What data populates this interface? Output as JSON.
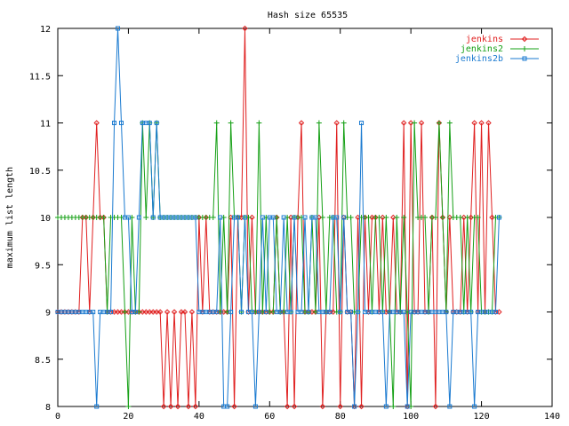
{
  "chart_data": {
    "type": "line",
    "title": "Hash size 65535",
    "xlabel": "",
    "ylabel": "maximum list length",
    "xlim": [
      0,
      140
    ],
    "ylim": [
      8,
      12
    ],
    "x_ticks": [
      0,
      20,
      40,
      60,
      80,
      100,
      120,
      140
    ],
    "y_ticks": [
      8,
      8.5,
      9,
      9.5,
      10,
      10.5,
      11,
      11.5,
      12
    ],
    "grid": false,
    "legend_position": "top-right",
    "x": [
      0,
      1,
      2,
      3,
      4,
      5,
      6,
      7,
      8,
      9,
      10,
      11,
      12,
      13,
      14,
      15,
      16,
      17,
      18,
      19,
      20,
      21,
      22,
      23,
      24,
      25,
      26,
      27,
      28,
      29,
      30,
      31,
      32,
      33,
      34,
      35,
      36,
      37,
      38,
      39,
      40,
      41,
      42,
      43,
      44,
      45,
      46,
      47,
      48,
      49,
      50,
      51,
      52,
      53,
      54,
      55,
      56,
      57,
      58,
      59,
      60,
      61,
      62,
      63,
      64,
      65,
      66,
      67,
      68,
      69,
      70,
      71,
      72,
      73,
      74,
      75,
      76,
      77,
      78,
      79,
      80,
      81,
      82,
      83,
      84,
      85,
      86,
      87,
      88,
      89,
      90,
      91,
      92,
      93,
      94,
      95,
      96,
      97,
      98,
      99,
      100,
      101,
      102,
      103,
      104,
      105,
      106,
      107,
      108,
      109,
      110,
      111,
      112,
      113,
      114,
      115,
      116,
      117,
      118,
      119,
      120,
      121,
      122,
      123,
      124,
      125
    ],
    "series": [
      {
        "name": "jenkins",
        "color": "#e02020",
        "marker": "diamond",
        "values": [
          9,
          9,
          9,
          9,
          9,
          9,
          9,
          10,
          10,
          9,
          10,
          11,
          10,
          10,
          9,
          9,
          9,
          9,
          9,
          9,
          9,
          9,
          9,
          9,
          9,
          9,
          9,
          9,
          9,
          9,
          8,
          9,
          8,
          9,
          8,
          9,
          9,
          8,
          9,
          8,
          10,
          9,
          10,
          9,
          9,
          9,
          9,
          9,
          9,
          10,
          8,
          10,
          10,
          12,
          9,
          10,
          9,
          9,
          9,
          9,
          9,
          9,
          10,
          9,
          9,
          8,
          10,
          8,
          10,
          11,
          9,
          9,
          9,
          9,
          10,
          8,
          9,
          9,
          9,
          11,
          8,
          10,
          9,
          9,
          8,
          10,
          8,
          10,
          9,
          10,
          10,
          9,
          10,
          9,
          9,
          10,
          9,
          9,
          11,
          8,
          11,
          9,
          9,
          11,
          9,
          9,
          10,
          8,
          11,
          10,
          9,
          10,
          9,
          9,
          9,
          10,
          9,
          10,
          11,
          9,
          11,
          9,
          11,
          10,
          9,
          9
        ]
      },
      {
        "name": "jenkins2",
        "color": "#16a016",
        "marker": "plus",
        "values": [
          10,
          10,
          10,
          10,
          10,
          10,
          10,
          10,
          10,
          10,
          10,
          10,
          10,
          10,
          9,
          10,
          10,
          10,
          10,
          9,
          8,
          10,
          9,
          9,
          11,
          10,
          11,
          10,
          11,
          10,
          10,
          10,
          10,
          10,
          10,
          10,
          10,
          10,
          10,
          10,
          10,
          10,
          10,
          10,
          10,
          11,
          9,
          10,
          9,
          11,
          10,
          10,
          9,
          10,
          10,
          9,
          9,
          11,
          9,
          10,
          9,
          9,
          10,
          9,
          9,
          10,
          9,
          10,
          10,
          10,
          9,
          9,
          10,
          9,
          11,
          10,
          9,
          10,
          10,
          9,
          9,
          11,
          10,
          10,
          9,
          9,
          10,
          10,
          10,
          9,
          10,
          10,
          9,
          10,
          9,
          8,
          10,
          9,
          10,
          9,
          8,
          11,
          10,
          10,
          10,
          9,
          10,
          10,
          11,
          10,
          9,
          11,
          10,
          10,
          10,
          9,
          10,
          9,
          10,
          10,
          9,
          9,
          9,
          9,
          10,
          10
        ]
      },
      {
        "name": "jenkins2b",
        "color": "#1a7ad0",
        "marker": "square",
        "values": [
          9,
          9,
          9,
          9,
          9,
          9,
          9,
          9,
          9,
          9,
          9,
          8,
          9,
          9,
          9,
          9,
          11,
          12,
          11,
          10,
          10,
          9,
          9,
          10,
          11,
          11,
          11,
          10,
          11,
          10,
          10,
          10,
          10,
          10,
          10,
          10,
          10,
          10,
          10,
          10,
          9,
          9,
          9,
          9,
          9,
          9,
          10,
          8,
          8,
          9,
          10,
          10,
          9,
          10,
          9,
          9,
          8,
          9,
          10,
          9,
          10,
          10,
          9,
          9,
          10,
          9,
          9,
          10,
          9,
          9,
          10,
          9,
          10,
          10,
          9,
          9,
          9,
          9,
          10,
          10,
          9,
          10,
          9,
          9,
          8,
          9,
          11,
          9,
          9,
          9,
          9,
          9,
          9,
          8,
          9,
          9,
          9,
          9,
          9,
          8,
          9,
          9,
          9,
          9,
          9,
          9,
          9,
          9,
          9,
          9,
          9,
          8,
          9,
          9,
          9,
          9,
          9,
          9,
          8,
          9,
          9,
          9,
          9,
          9,
          9,
          10
        ]
      }
    ]
  }
}
